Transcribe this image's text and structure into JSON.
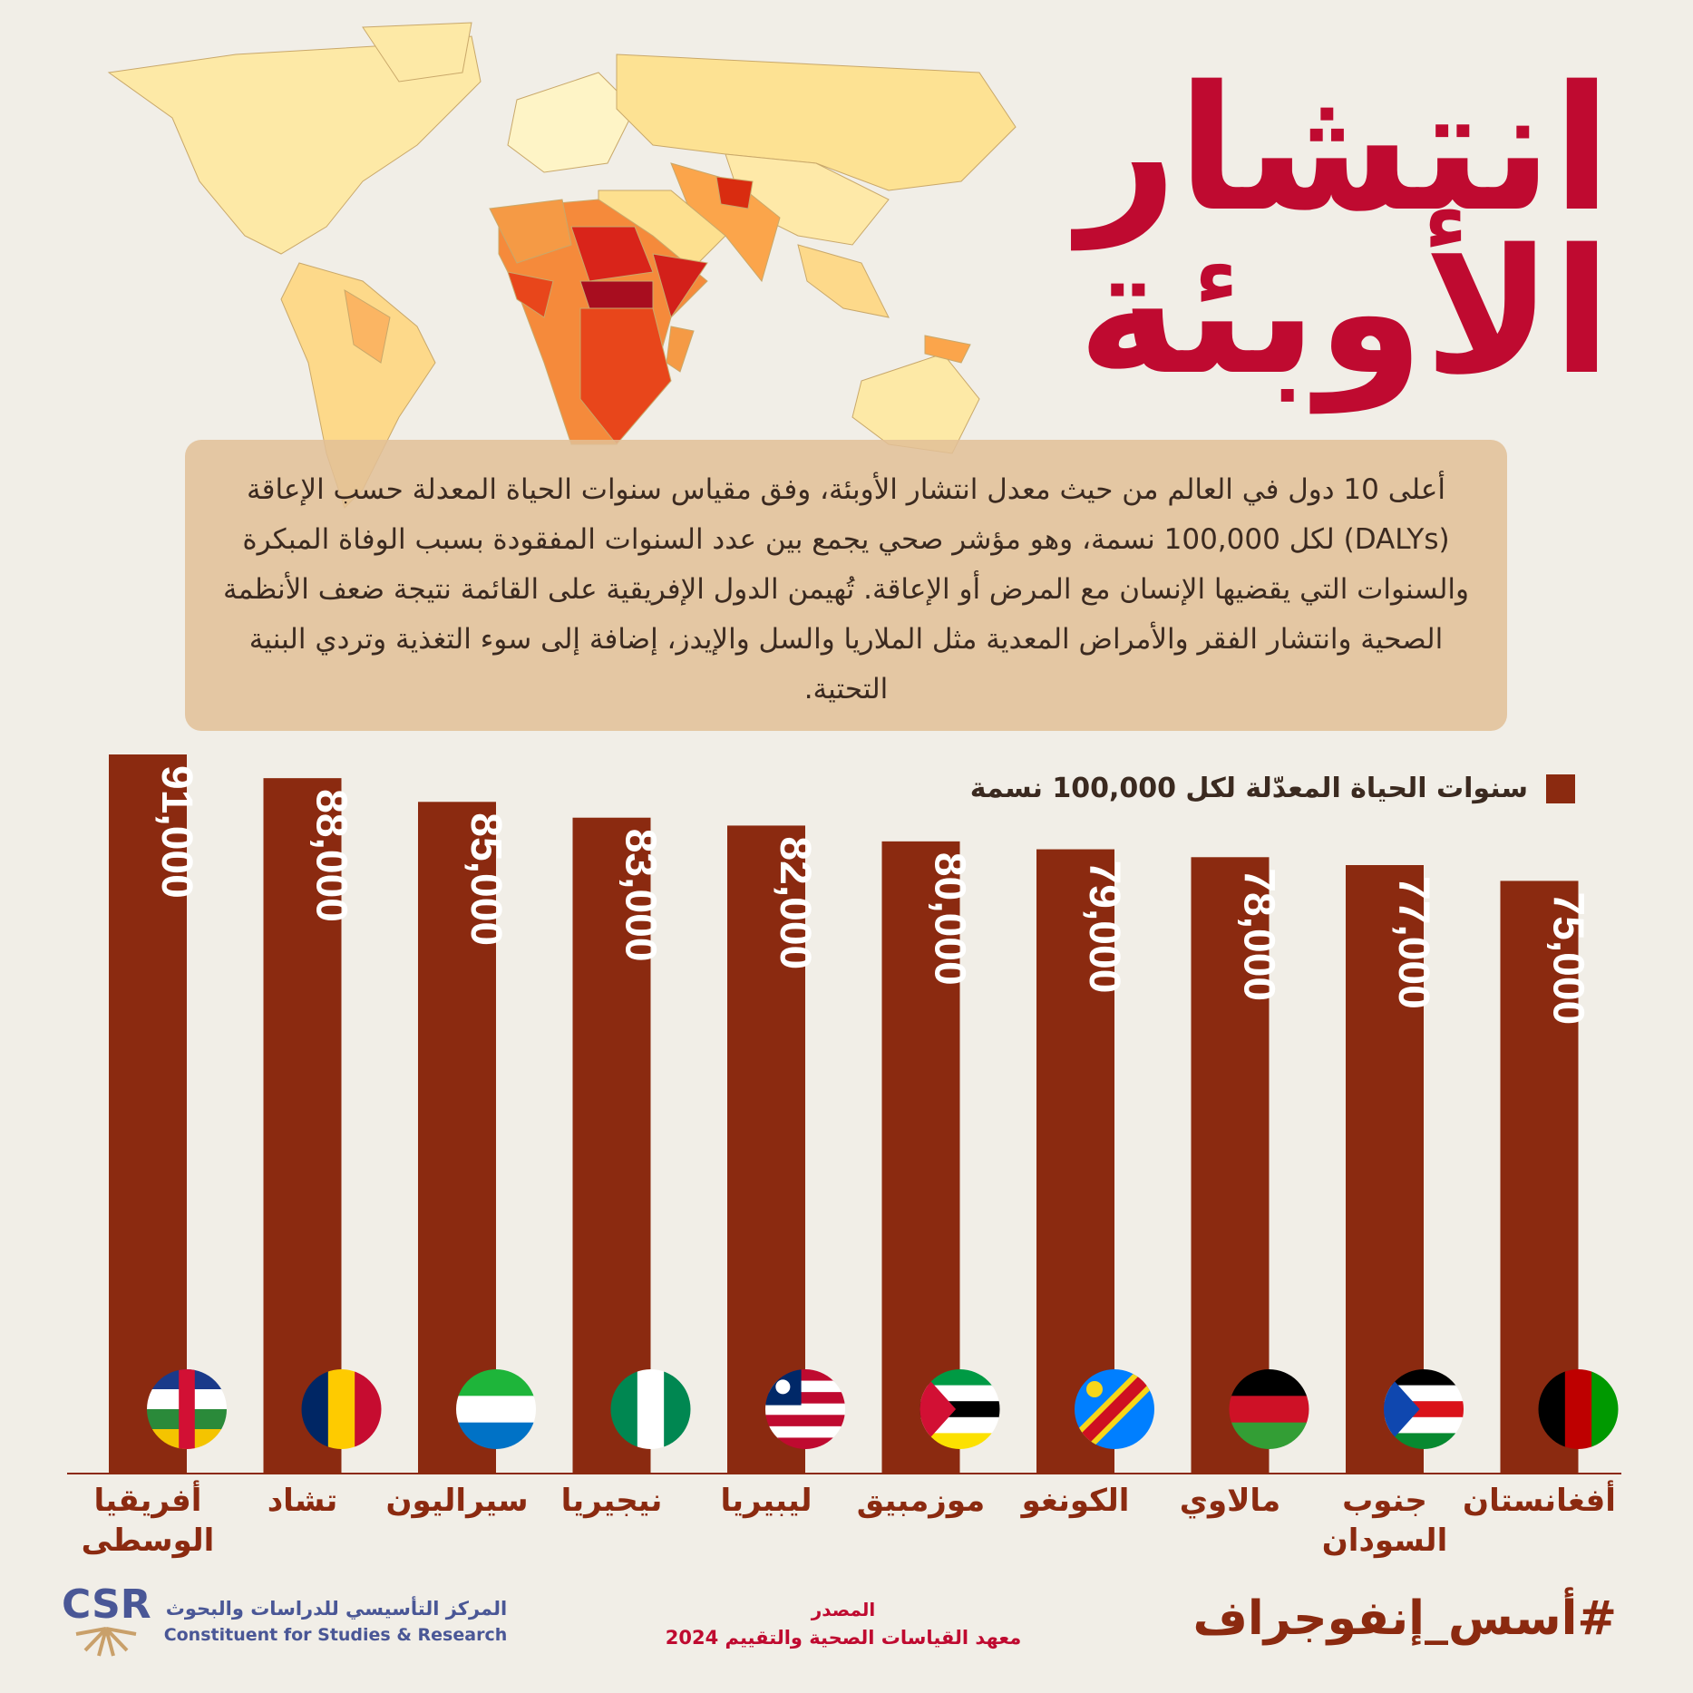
{
  "title": {
    "line1": "انتشار",
    "line2": "الأوبئة"
  },
  "description": "أعلى 10 دول في العالم من حيث معدل انتشار الأوبئة، وفق مقياس سنوات الحياة المعدلة حسب الإعاقة (DALYs) لكل 100,000 نسمة، وهو مؤشر صحي يجمع بين عدد السنوات المفقودة بسبب الوفاة المبكرة والسنوات التي يقضيها الإنسان مع المرض أو الإعاقة. تُهيمن الدول الإفريقية على القائمة نتيجة ضعف الأنظمة الصحية وانتشار الفقر والأمراض المعدية مثل الملاريا والسل والإيدز، إضافة إلى سوء التغذية وتردي البنية التحتية.",
  "colors": {
    "bar": "#8b2a10",
    "title": "#bf0a30",
    "background": "#f1eee7",
    "box": "#e2c096"
  },
  "chart_data": {
    "type": "bar",
    "legend": "سنوات الحياة المعدّلة لكل 100,000 نسمة",
    "legend_position": "top-right",
    "categories": [
      "أفريقيا الوسطى",
      "تشاد",
      "سيراليون",
      "نيجيريا",
      "ليبيريا",
      "موزمبيق",
      "الكونغو",
      "مالاوي",
      "جنوب السودان",
      "أفغانستان"
    ],
    "values": [
      91000,
      88000,
      85000,
      83000,
      82000,
      80000,
      79000,
      78000,
      77000,
      75000
    ],
    "value_labels": [
      "91,000",
      "88,000",
      "85,000",
      "83,000",
      "82,000",
      "80,000",
      "79,000",
      "78,000",
      "77,000",
      "75,000"
    ],
    "flags": [
      "central-african-republic",
      "chad",
      "sierra-leone",
      "nigeria",
      "liberia",
      "mozambique",
      "dr-congo",
      "malawi",
      "south-sudan",
      "afghanistan"
    ],
    "ylim": [
      0,
      91000
    ],
    "grid": false
  },
  "footer": {
    "hashtag": "#أسس_إنفوجراف",
    "source_label": "المصدر",
    "source": "معهد القياسات الصحية والتقييم 2024",
    "logo_letters": "CSR",
    "org_ar": "المركز التأسيسي للدراسات والبحوث",
    "org_en": "Constituent for Studies & Research"
  }
}
